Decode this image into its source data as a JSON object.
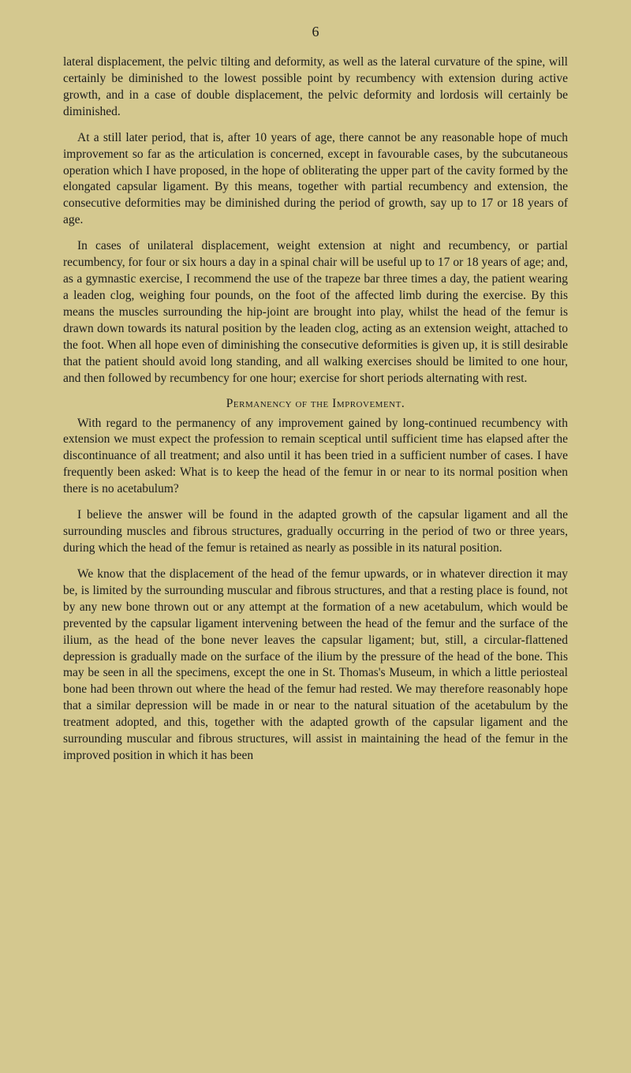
{
  "page_number": "6",
  "paragraphs": {
    "p1": "lateral displacement, the pelvic tilting and deformity, as well as the lateral curvature of the spine, will certainly be diminished to the lowest possible point by recumbency with extension during active growth, and in a case of double displacement, the pelvic deformity and lordosis will certainly be diminished.",
    "p2": "At a still later period, that is, after 10 years of age, there cannot be any reasonable hope of much improvement so far as the articulation is concerned, except in favourable cases, by the subcutaneous operation which I have proposed, in the hope of obliterating the upper part of the cavity formed by the elongated capsular ligament. By this means, together with partial recumbency and extension, the consecutive deformities may be diminished during the period of growth, say up to 17 or 18 years of age.",
    "p3": "In cases of unilateral displacement, weight extension at night and recumbency, or partial recumbency, for four or six hours a day in a spinal chair will be useful up to 17 or 18 years of age; and, as a gymnastic exercise, I recommend the use of the trapeze bar three times a day, the patient wearing a leaden clog, weighing four pounds, on the foot of the affected limb during the exercise. By this means the muscles surrounding the hip-joint are brought into play, whilst the head of the femur is drawn down towards its natural position by the leaden clog, acting as an extension weight, attached to the foot. When all hope even of diminishing the consecutive deformities is given up, it is still desirable that the patient should avoid long standing, and all walking exercises should be limited to one hour, and then followed by recumbency for one hour; exercise for short periods alternating with rest.",
    "heading": "Permanency of the Improvement.",
    "p4": "With regard to the permanency of any improvement gained by long-continued recumbency with extension we must expect the profession to remain sceptical until sufficient time has elapsed after the discontinuance of all treatment; and also until it has been tried in a sufficient number of cases. I have frequently been asked: What is to keep the head of the femur in or near to its normal position when there is no acetabulum?",
    "p5": "I believe the answer will be found in the adapted growth of the capsular ligament and all the surrounding muscles and fibrous structures, gradually occurring in the period of two or three years, during which the head of the femur is retained as nearly as possible in its natural position.",
    "p6": "We know that the displacement of the head of the femur upwards, or in whatever direction it may be, is limited by the surrounding muscular and fibrous structures, and that a resting place is found, not by any new bone thrown out or any attempt at the formation of a new acetabulum, which would be prevented by the capsular ligament intervening between the head of the femur and the surface of the ilium, as the head of the bone never leaves the capsular ligament; but, still, a circular-flattened depression is gradually made on the surface of the ilium by the pressure of the head of the bone. This may be seen in all the specimens, except the one in St. Thomas's Museum, in which a little periosteal bone had been thrown out where the head of the femur had rested. We may therefore reasonably hope that a similar depression will be made in or near to the natural situation of the acetabulum by the treatment adopted, and this, together with the adapted growth of the capsular ligament and the surrounding muscular and fibrous structures, will assist in maintaining the head of the femur in the improved position in which it has been"
  },
  "colors": {
    "background": "#d4c88f",
    "text": "#1a1a1a"
  },
  "typography": {
    "body_fontsize": 15.5,
    "line_height": 1.35,
    "font_family": "Georgia, Times New Roman, serif"
  }
}
